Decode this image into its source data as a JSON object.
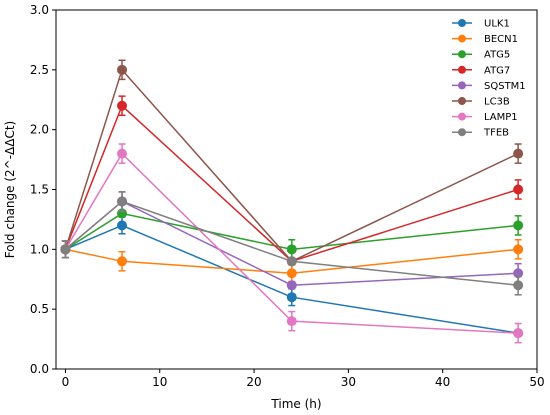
{
  "chart_data": {
    "type": "line",
    "title": "",
    "xlabel": "Time (h)",
    "ylabel": "Fold change (2^-ΔΔCt)",
    "x": [
      0,
      6,
      24,
      48
    ],
    "xlim": [
      -1,
      50
    ],
    "ylim": [
      0.0,
      3.0
    ],
    "xticks": [
      0,
      10,
      20,
      30,
      40,
      50
    ],
    "yticks": [
      0.0,
      0.5,
      1.0,
      1.5,
      2.0,
      2.5,
      3.0
    ],
    "grid": false,
    "legend_position": "top-right",
    "series": [
      {
        "name": "ULK1",
        "color": "#1f77b4",
        "values": [
          1.0,
          1.2,
          0.6,
          0.3
        ],
        "errors": [
          0.07,
          0.07,
          0.07,
          0.0
        ]
      },
      {
        "name": "BECN1",
        "color": "#ff7f0e",
        "values": [
          1.0,
          0.9,
          0.8,
          1.0
        ],
        "errors": [
          0.07,
          0.08,
          0.07,
          0.08
        ]
      },
      {
        "name": "ATG5",
        "color": "#2ca02c",
        "values": [
          1.0,
          1.3,
          1.0,
          1.2
        ],
        "errors": [
          0.07,
          0.0,
          0.08,
          0.08
        ]
      },
      {
        "name": "ATG7",
        "color": "#d62728",
        "values": [
          1.0,
          2.2,
          0.9,
          1.5
        ],
        "errors": [
          0.07,
          0.08,
          0.0,
          0.08
        ]
      },
      {
        "name": "SQSTM1",
        "color": "#9467bd",
        "values": [
          1.0,
          1.4,
          0.7,
          0.8
        ],
        "errors": [
          0.07,
          0.08,
          0.0,
          0.08
        ]
      },
      {
        "name": "LC3B",
        "color": "#8c564b",
        "values": [
          1.0,
          2.5,
          0.9,
          1.8
        ],
        "errors": [
          0.07,
          0.08,
          0.0,
          0.08
        ]
      },
      {
        "name": "LAMP1",
        "color": "#e377c2",
        "values": [
          1.0,
          1.8,
          0.4,
          0.3
        ],
        "errors": [
          0.07,
          0.08,
          0.08,
          0.08
        ]
      },
      {
        "name": "TFEB",
        "color": "#7f7f7f",
        "values": [
          1.0,
          1.4,
          0.9,
          0.7
        ],
        "errors": [
          0.07,
          0.08,
          0.0,
          0.08
        ]
      }
    ]
  }
}
